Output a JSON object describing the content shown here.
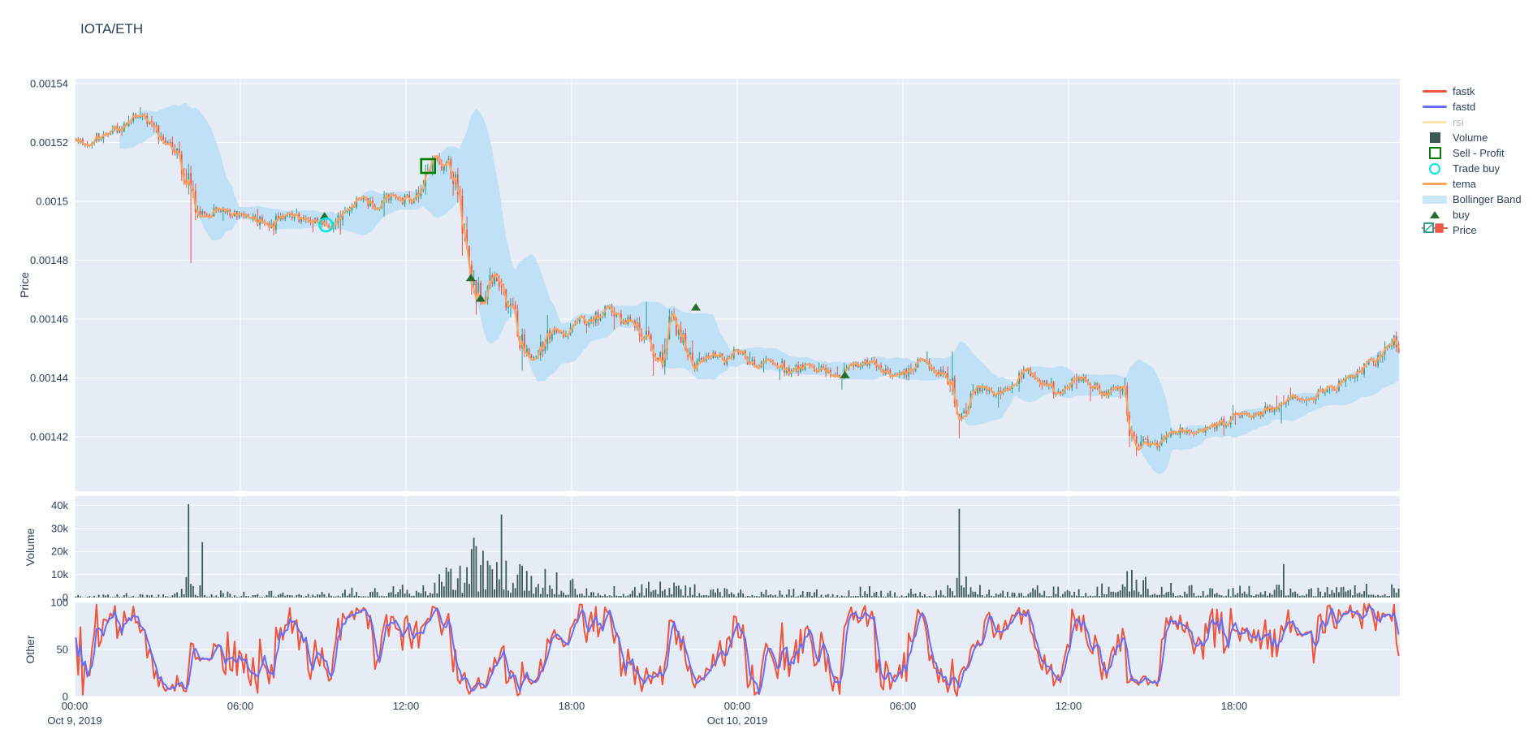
{
  "title": "IOTA/ETH",
  "colors": {
    "background": "#FFFFFF",
    "panel": "#E5ECF6",
    "grid": "#FFFFFF",
    "text": "#2A3F5F",
    "dimmed_text": "#A9B4C4"
  },
  "axes": {
    "x": {
      "ticks": [
        {
          "t": 0,
          "label": "00:00",
          "date": "Oct 9, 2019"
        },
        {
          "t": 6,
          "label": "06:00"
        },
        {
          "t": 12,
          "label": "12:00"
        },
        {
          "t": 18,
          "label": "18:00"
        },
        {
          "t": 24,
          "label": "00:00",
          "date": "Oct 10, 2019"
        },
        {
          "t": 30,
          "label": "06:00"
        },
        {
          "t": 36,
          "label": "12:00"
        },
        {
          "t": 42,
          "label": "18:00"
        }
      ],
      "range_hours": [
        0,
        48
      ]
    },
    "price": {
      "title": "Price",
      "ticks": [
        "0.00154",
        "0.00152",
        "0.0015",
        "0.00148",
        "0.00146",
        "0.00144",
        "0.00142"
      ],
      "tick_values": [
        0.00154,
        0.00152,
        0.0015,
        0.00148,
        0.00146,
        0.00144,
        0.00142
      ],
      "range": [
        0.0014015,
        0.0015417
      ]
    },
    "volume": {
      "title": "Volume",
      "ticks": [
        "40k",
        "30k",
        "20k",
        "10k",
        "0"
      ],
      "tick_values": [
        40000,
        30000,
        20000,
        10000,
        0
      ],
      "range": [
        0,
        43500
      ]
    },
    "other": {
      "title": "Other",
      "ticks": [
        "100",
        "50",
        "0"
      ],
      "tick_values": [
        100,
        50,
        0
      ],
      "range": [
        0,
        103
      ]
    }
  },
  "legend": {
    "items": [
      {
        "label": "fastk",
        "swatch": "line",
        "color": "#EF553B"
      },
      {
        "label": "fastd",
        "swatch": "line",
        "color": "#636EFA"
      },
      {
        "label": "rsi",
        "swatch": "line",
        "color": "#FFE2AE",
        "dimmed": true
      },
      {
        "label": "Volume",
        "swatch": "square",
        "color": "#3C5A57"
      },
      {
        "label": "Sell - Profit",
        "swatch": "square-open",
        "color": "#008000"
      },
      {
        "label": "Trade buy",
        "swatch": "circle-open",
        "color": "#00E5E5"
      },
      {
        "label": "tema",
        "swatch": "line",
        "color": "#FFA15A"
      },
      {
        "label": "Bollinger Band",
        "swatch": "band",
        "color": "#C9E7F8"
      },
      {
        "label": "buy",
        "swatch": "triangle-up",
        "color": "#266B2B"
      },
      {
        "label": "Price",
        "swatch": "candlestick",
        "color": "#2FA08C",
        "color2": "#EC584C"
      }
    ]
  },
  "chart_data": {
    "type": "candlestick",
    "pair": "IOTA/ETH",
    "interval_minutes": 5,
    "x_start": "2019-10-09 00:00",
    "x_end": "2019-10-11 00:00",
    "panels": [
      "Price",
      "Volume",
      "Other"
    ],
    "candle_colors": {
      "increasing": "#2FA08C",
      "decreasing": "#EC584C"
    },
    "seed": 42,
    "price_anchors": {
      "t_hours": [
        0,
        0.5,
        1,
        1.5,
        2,
        2.3,
        2.7,
        3.2,
        3.7,
        4.05,
        4.2,
        4.4,
        4.8,
        5.3,
        5.8,
        6.3,
        6.8,
        7.1,
        7.5,
        8,
        8.5,
        9,
        9.3,
        9.7,
        10.1,
        10.4,
        10.7,
        11,
        11.3,
        11.6,
        11.9,
        12.1,
        12.3,
        12.6,
        12.85,
        13.1,
        13.35,
        13.6,
        13.85,
        14.05,
        14.25,
        14.45,
        14.65,
        14.85,
        15.05,
        15.25,
        15.55,
        15.85,
        16.15,
        16.45,
        16.75,
        17.05,
        17.35,
        17.65,
        18,
        18.3,
        18.6,
        19,
        19.3,
        19.6,
        19.9,
        20.2,
        20.5,
        20.8,
        21.1,
        21.4,
        21.65,
        21.9,
        22.2,
        22.5,
        22.8,
        23.2,
        23.6,
        24,
        24.4,
        24.8,
        25.2,
        25.6,
        26,
        26.5,
        27,
        27.5,
        27.9,
        28.3,
        28.7,
        29,
        29.4,
        29.8,
        30.2,
        30.6,
        31,
        31.4,
        31.8,
        31.95,
        32.05,
        32.2,
        32.5,
        32.9,
        33.3,
        33.7,
        34.1,
        34.5,
        34.9,
        35.3,
        35.7,
        36.1,
        36.5,
        36.9,
        37.3,
        37.7,
        38,
        38.2,
        38.4,
        38.7,
        39,
        39.4,
        39.8,
        40.3,
        40.8,
        41.3,
        41.8,
        42.3,
        42.8,
        43.3,
        43.8,
        44.3,
        44.8,
        45.3,
        45.8,
        46.3,
        46.8,
        47.2,
        47.6,
        47.85,
        48
      ],
      "close": [
        0.001521,
        0.00152,
        0.0015225,
        0.001524,
        0.001527,
        0.0015295,
        0.0015265,
        0.001522,
        0.0015185,
        0.001511,
        0.001503,
        0.001497,
        0.0014955,
        0.0014975,
        0.0014955,
        0.0014945,
        0.001493,
        0.0014905,
        0.0014955,
        0.001495,
        0.0014935,
        0.0014925,
        0.0014915,
        0.0014955,
        0.0014985,
        0.0015015,
        0.0014985,
        0.0014965,
        0.0015,
        0.0015025,
        0.0015,
        0.0015015,
        0.0014995,
        0.001505,
        0.0015115,
        0.001514,
        0.0015105,
        0.0015125,
        0.001506,
        0.001496,
        0.001481,
        0.0014745,
        0.0014695,
        0.001465,
        0.0014715,
        0.0014745,
        0.00147,
        0.001463,
        0.0014535,
        0.0014485,
        0.001446,
        0.0014525,
        0.0014565,
        0.0014545,
        0.0014575,
        0.0014605,
        0.0014585,
        0.001461,
        0.0014635,
        0.0014615,
        0.0014585,
        0.0014605,
        0.0014575,
        0.001452,
        0.0014465,
        0.001448,
        0.0014615,
        0.0014555,
        0.0014505,
        0.001445,
        0.0014465,
        0.0014485,
        0.001445,
        0.0014495,
        0.0014465,
        0.001444,
        0.0014465,
        0.0014445,
        0.001442,
        0.0014445,
        0.001443,
        0.0014405,
        0.0014415,
        0.0014435,
        0.0014455,
        0.0014445,
        0.0014425,
        0.0014405,
        0.0014425,
        0.0014455,
        0.0014445,
        0.0014415,
        0.001438,
        0.001433,
        0.001424,
        0.001429,
        0.0014335,
        0.0014365,
        0.001434,
        0.0014365,
        0.0014395,
        0.0014425,
        0.0014405,
        0.0014375,
        0.0014345,
        0.0014375,
        0.0014395,
        0.0014375,
        0.0014345,
        0.0014365,
        0.0014355,
        0.001428,
        0.0014165,
        0.0014195,
        0.0014165,
        0.0014185,
        0.0014205,
        0.0014225,
        0.0014215,
        0.0014235,
        0.0014255,
        0.0014275,
        0.0014265,
        0.0014295,
        0.0014315,
        0.0014335,
        0.0014325,
        0.0014355,
        0.0014375,
        0.0014405,
        0.0014435,
        0.0014465,
        0.0014515,
        0.001453,
        0.0014465
      ]
    },
    "wick_events": [
      {
        "t": 2.35,
        "high": 0.001532
      },
      {
        "t": 4.2,
        "low": 0.001479
      },
      {
        "t": 7.2,
        "low": 0.0014885
      },
      {
        "t": 13.15,
        "high": 0.0015165
      },
      {
        "t": 14.5,
        "low": 0.0014615
      },
      {
        "t": 16.2,
        "low": 0.0014425
      },
      {
        "t": 21.7,
        "high": 0.0014635
      },
      {
        "t": 32.02,
        "low": 0.0014195
      },
      {
        "t": 38.4,
        "low": 0.0014135
      },
      {
        "t": 43.7,
        "low": 0.0014245
      },
      {
        "t": 47.7,
        "high": 0.0014535
      }
    ],
    "volume_envelope": {
      "t_hours": [
        0,
        1,
        2,
        3,
        4,
        4.3,
        5,
        6,
        7,
        8,
        9,
        10,
        11,
        12,
        12.7,
        13.2,
        13.9,
        14.5,
        15,
        15.6,
        16.2,
        16.8,
        17.4,
        18,
        19,
        20,
        21,
        21.8,
        22.5,
        23.5,
        24.5,
        25.5,
        26.5,
        27.5,
        28.5,
        29.5,
        30.5,
        31.5,
        32.3,
        33,
        34,
        35,
        36,
        37,
        38.3,
        39,
        40,
        41,
        42,
        43,
        44,
        45,
        46,
        47,
        48
      ],
      "v": [
        800,
        900,
        1200,
        900,
        2500,
        4000,
        2000,
        1500,
        1800,
        1500,
        2000,
        2500,
        3000,
        3500,
        5000,
        7000,
        10000,
        14000,
        15000,
        12000,
        10000,
        7000,
        8000,
        5000,
        3500,
        3000,
        4500,
        5500,
        3500,
        2500,
        2200,
        2000,
        2500,
        1800,
        3500,
        2500,
        2200,
        2800,
        6000,
        2500,
        2200,
        3500,
        2500,
        3000,
        8000,
        5000,
        3500,
        3000,
        2800,
        4000,
        3500,
        3000,
        3500,
        4500,
        3500
      ]
    },
    "volume_spikes": [
      {
        "t": 4.12,
        "v": 40500
      },
      {
        "t": 4.55,
        "v": 24000
      },
      {
        "t": 13.55,
        "v": 12500
      },
      {
        "t": 14.42,
        "v": 26000
      },
      {
        "t": 14.9,
        "v": 16000
      },
      {
        "t": 15.38,
        "v": 36000
      },
      {
        "t": 15.55,
        "v": 16000
      },
      {
        "t": 16.3,
        "v": 11500
      },
      {
        "t": 21.7,
        "v": 6500
      },
      {
        "t": 32.02,
        "v": 38500
      },
      {
        "t": 38.25,
        "v": 12000
      },
      {
        "t": 43.72,
        "v": 14500
      }
    ],
    "indicators": {
      "tema": {
        "type": "line",
        "color": "#FFA15A",
        "span": 6
      },
      "bollinger": {
        "window": 20,
        "stds": 2,
        "fill_color": "#BEE0F4"
      },
      "fastk": {
        "window": 14,
        "color": "#EF553B",
        "range": [
          0,
          100
        ]
      },
      "fastd": {
        "smooth": 3,
        "color": "#636EFA"
      },
      "rsi": {
        "visible": false,
        "color": "#FFE2AE"
      }
    },
    "markers": {
      "sell_profit": [
        {
          "t": 12.8,
          "price": 0.001512
        }
      ],
      "trade_buy": [
        {
          "t": 9.1,
          "price": 0.001492
        }
      ],
      "buy": [
        {
          "t": 9.05,
          "price": 0.001495
        },
        {
          "t": 14.35,
          "price": 0.001474
        },
        {
          "t": 14.7,
          "price": 0.001467
        },
        {
          "t": 22.5,
          "price": 0.001464
        },
        {
          "t": 27.9,
          "price": 0.001441
        }
      ]
    }
  }
}
